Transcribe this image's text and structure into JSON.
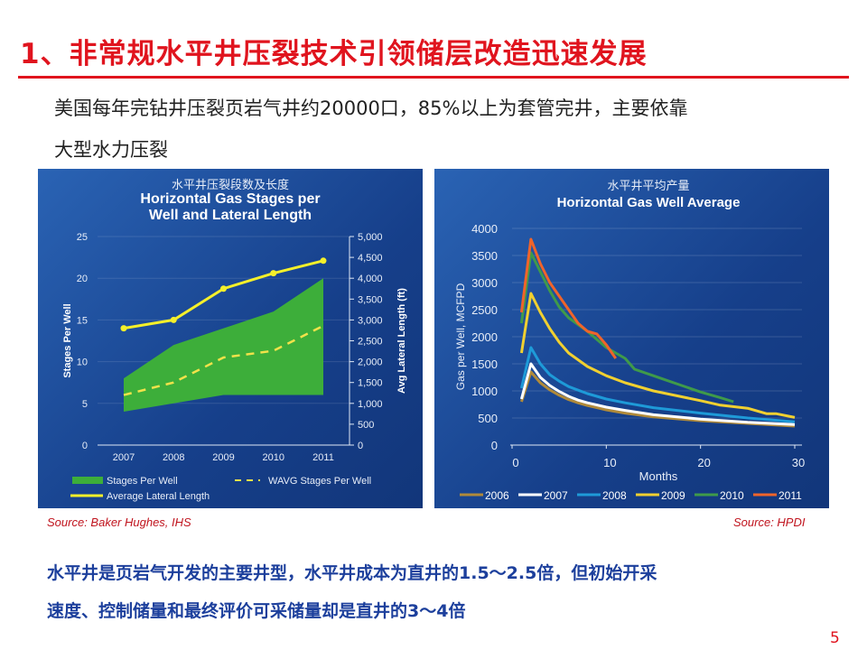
{
  "title": "1、非常规水平井压裂技术引领储层改造迅速发展",
  "intro": [
    "美国每年完钻井压裂页岩气井约20000口，85%以上为套管完井，主要依靠",
    "大型水力压裂"
  ],
  "sources": {
    "left": "Source: Baker Hughes, IHS",
    "right": "Source: HPDI"
  },
  "conclusion": [
    "水平井是页岩气开发的主要井型，水平井成本为直井的1.5～2.5倍，但初始开采",
    "速度、控制储量和最终评价可采储量却是直井的3～4倍"
  ],
  "page_number": "5",
  "chart_data": [
    {
      "type": "area+line",
      "title_cn": "水平井压裂段数及长度",
      "title": "Horizontal Gas Stages per Well and Lateral Length",
      "categories": [
        "2007",
        "2008",
        "2009",
        "2010",
        "2011"
      ],
      "ylabel": "Stages Per Well",
      "y2label": "Avg Lateral Length (ft)",
      "ylim": [
        0,
        25
      ],
      "yticks": [
        "0",
        "5",
        "10",
        "15",
        "20",
        "25"
      ],
      "y2lim": [
        0,
        5000
      ],
      "y2ticks": [
        "0",
        "500",
        "1,000",
        "1,500",
        "2,000",
        "2,500",
        "3,000",
        "3,500",
        "4,000",
        "4,500",
        "5,000"
      ],
      "series": [
        {
          "name": "Stages Per Well",
          "low": [
            4,
            5,
            6,
            6,
            6
          ],
          "high": [
            8,
            12,
            14,
            16,
            20
          ],
          "color": "#3dae3a"
        },
        {
          "name": "WAVG Stages Per Well",
          "values": [
            6,
            7.5,
            10.5,
            11.3,
            14.3
          ],
          "color": "#f2e24a"
        },
        {
          "name": "Average Lateral Length",
          "values": [
            2800,
            3000,
            3750,
            4120,
            4420
          ],
          "color": "#f5f02a",
          "axis": "right"
        }
      ]
    },
    {
      "type": "line",
      "title_cn": "水平井平均产量",
      "title": "Horizontal Gas Well Average",
      "xlabel": "Months",
      "ylabel": "Gas per Well, MCFPD",
      "xlim": [
        0,
        30
      ],
      "ylim": [
        0,
        4000
      ],
      "xticks": [
        "0",
        "10",
        "20",
        "30"
      ],
      "yticks": [
        "0",
        "500",
        "1000",
        "1500",
        "2000",
        "2500",
        "3000",
        "3500",
        "4000"
      ],
      "series": [
        {
          "name": "2006",
          "color": "#b08a3a",
          "x": [
            1,
            2,
            3,
            4,
            5,
            6,
            7,
            8,
            9,
            10,
            12,
            15,
            20,
            25,
            30
          ],
          "y": [
            800,
            1350,
            1150,
            1020,
            920,
            840,
            780,
            730,
            690,
            650,
            590,
            520,
            450,
            400,
            350
          ]
        },
        {
          "name": "2007",
          "color": "#ffffff",
          "x": [
            1,
            2,
            3,
            4,
            5,
            6,
            7,
            8,
            10,
            12,
            15,
            20,
            25,
            30
          ],
          "y": [
            850,
            1500,
            1250,
            1100,
            990,
            900,
            830,
            780,
            700,
            640,
            560,
            480,
            420,
            380
          ]
        },
        {
          "name": "2008",
          "color": "#1e9ad8",
          "x": [
            1,
            2,
            3,
            4,
            5,
            6,
            8,
            10,
            12,
            15,
            20,
            25,
            30
          ],
          "y": [
            1050,
            1800,
            1500,
            1300,
            1180,
            1080,
            950,
            850,
            780,
            690,
            590,
            500,
            430
          ]
        },
        {
          "name": "2009",
          "color": "#f0d030",
          "x": [
            1,
            2,
            3,
            4,
            5,
            6,
            8,
            10,
            12,
            15,
            20,
            22,
            25,
            27,
            28,
            30
          ],
          "y": [
            1700,
            2800,
            2450,
            2150,
            1900,
            1700,
            1450,
            1280,
            1150,
            1000,
            820,
            740,
            680,
            580,
            580,
            510
          ]
        },
        {
          "name": "2010",
          "color": "#3f9a4a",
          "x": [
            1,
            2,
            3,
            4,
            5,
            6,
            8,
            10,
            12,
            13,
            15,
            16,
            18,
            20,
            22,
            23.5
          ],
          "y": [
            2250,
            3550,
            3200,
            2850,
            2550,
            2350,
            2100,
            1800,
            1600,
            1400,
            1280,
            1220,
            1100,
            980,
            880,
            800
          ]
        },
        {
          "name": "2011",
          "color": "#f0642a",
          "x": [
            1,
            2,
            3,
            4,
            5,
            6,
            7,
            8,
            9,
            10,
            11
          ],
          "y": [
            2450,
            3800,
            3350,
            3000,
            2750,
            2500,
            2250,
            2100,
            2050,
            1850,
            1600
          ]
        }
      ]
    }
  ]
}
